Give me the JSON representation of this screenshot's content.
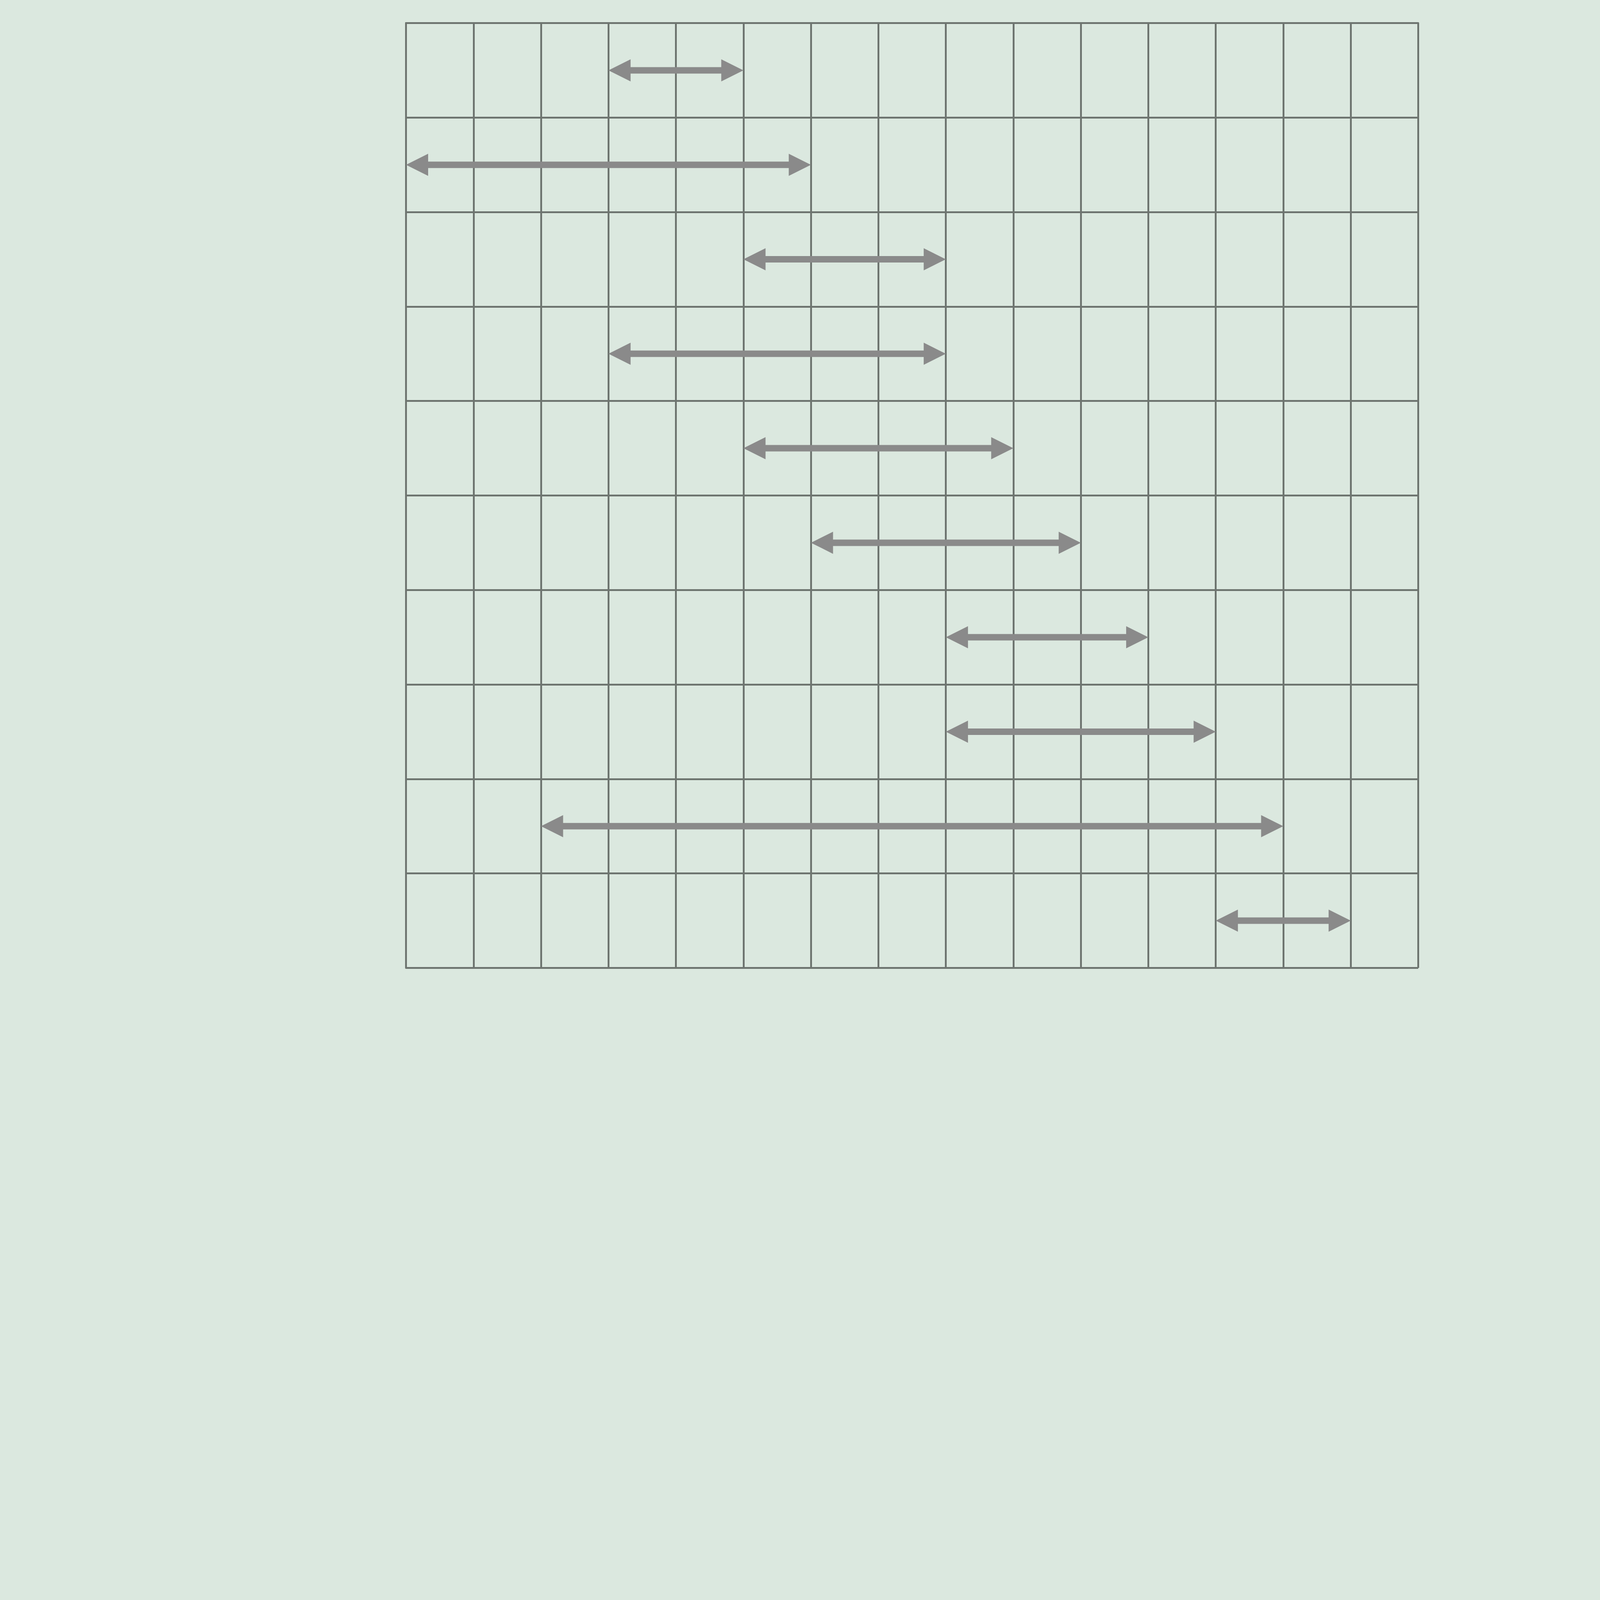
{
  "chart_data": {
    "type": "gantt",
    "categories": [
      null,
      null,
      null,
      null,
      null,
      null,
      null,
      null,
      null,
      null
    ],
    "start": [
      3,
      0,
      5,
      3,
      5,
      6,
      8,
      8,
      2,
      12
    ],
    "end": [
      5,
      6,
      8,
      8,
      9,
      10,
      11,
      12,
      13,
      14
    ],
    "xlim": [
      0,
      15
    ],
    "xticks": [
      0,
      1,
      2,
      3,
      4,
      5,
      6,
      7,
      8,
      9,
      10,
      11,
      12,
      13,
      14,
      15
    ],
    "grid": true,
    "tick_labels": false,
    "color": "#8a8a8a",
    "marker": "arrow"
  }
}
